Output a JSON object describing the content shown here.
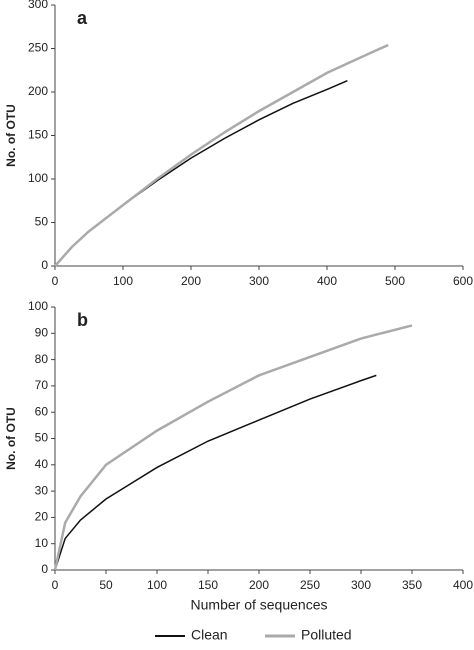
{
  "chart_data": [
    {
      "type": "line",
      "title": "a",
      "y_label": "No. of OTU",
      "xlim": [
        0,
        600
      ],
      "xticks": [
        0,
        100,
        200,
        300,
        400,
        500,
        600
      ],
      "ylim": [
        0,
        300
      ],
      "yticks": [
        0,
        50,
        100,
        150,
        200,
        250,
        300
      ],
      "series": [
        {
          "color": "#111111",
          "x": [
            0,
            25,
            50,
            100,
            150,
            200,
            250,
            300,
            350,
            400,
            430
          ],
          "values": [
            0,
            22,
            40,
            70,
            98,
            124,
            147,
            168,
            187,
            203,
            213
          ]
        },
        {
          "color": "#aaaaaa",
          "x": [
            0,
            25,
            50,
            100,
            150,
            200,
            250,
            300,
            350,
            400,
            450,
            490
          ],
          "values": [
            0,
            22,
            40,
            70,
            100,
            128,
            154,
            178,
            200,
            222,
            240,
            254
          ]
        }
      ]
    },
    {
      "type": "line",
      "title": "b",
      "y_label": "No. of OTU",
      "x_label": "Number of sequences",
      "xlim": [
        0,
        400
      ],
      "xticks": [
        0,
        50,
        100,
        150,
        200,
        250,
        300,
        350,
        400
      ],
      "ylim": [
        0,
        100
      ],
      "yticks": [
        0,
        10,
        20,
        30,
        40,
        50,
        60,
        70,
        80,
        90,
        100
      ],
      "series": [
        {
          "name": "Clean",
          "color": "#111111",
          "x": [
            0,
            10,
            25,
            50,
            100,
            150,
            200,
            250,
            300,
            315
          ],
          "values": [
            0,
            12,
            19,
            27,
            39,
            49,
            57,
            65,
            72,
            74
          ]
        },
        {
          "name": "Polluted",
          "color": "#aaaaaa",
          "x": [
            0,
            10,
            25,
            50,
            100,
            150,
            200,
            250,
            300,
            350
          ],
          "values": [
            0,
            18,
            28,
            40,
            53,
            64,
            74,
            81,
            88,
            93
          ]
        }
      ]
    }
  ]
}
